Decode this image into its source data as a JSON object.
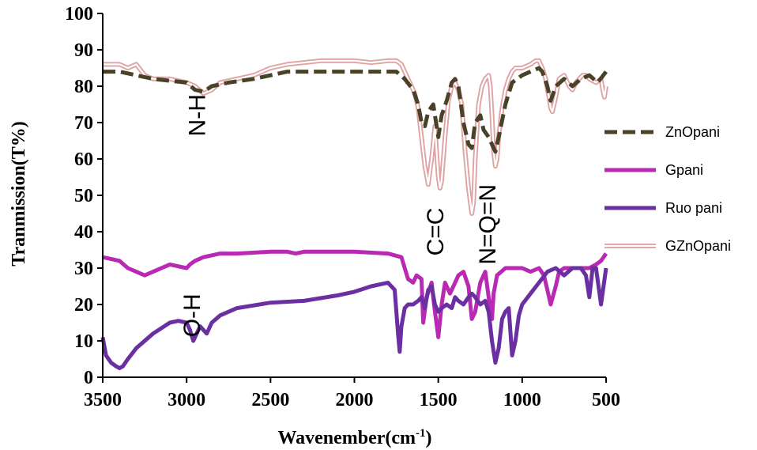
{
  "chart_data": {
    "type": "line",
    "xlabel": "Wavenember(cm",
    "xlabel_sup": "-1",
    "xlabel_close": ")",
    "ylabel": "Tranmission(T%)",
    "xlim": [
      3500,
      500
    ],
    "ylim": [
      0,
      100
    ],
    "x_ticks": [
      3500,
      3000,
      2500,
      2000,
      1500,
      1000,
      500
    ],
    "y_ticks": [
      0,
      10,
      20,
      30,
      40,
      50,
      60,
      70,
      80,
      90,
      100
    ],
    "grid": false,
    "legend_position": "right",
    "annotations": [
      {
        "text": "N-H",
        "x": 2890,
        "y": 72,
        "rotation": -90
      },
      {
        "text": "O-H",
        "x": 2920,
        "y": 17,
        "rotation": -90
      },
      {
        "text": "C=C",
        "x": 1470,
        "y": 40,
        "rotation": -90
      },
      {
        "text": "N=Q=N",
        "x": 1160,
        "y": 42,
        "rotation": -90
      }
    ],
    "series": [
      {
        "name": "ZnOpani",
        "color": "#4a4228",
        "style": "dashed",
        "x": [
          3500,
          3400,
          3200,
          3000,
          2950,
          2900,
          2850,
          2750,
          2600,
          2400,
          2200,
          2000,
          1850,
          1750,
          1700,
          1650,
          1620,
          1600,
          1580,
          1560,
          1530,
          1500,
          1480,
          1450,
          1420,
          1400,
          1380,
          1350,
          1320,
          1300,
          1280,
          1250,
          1230,
          1200,
          1180,
          1160,
          1140,
          1100,
          1060,
          1000,
          950,
          900,
          880,
          850,
          830,
          800,
          750,
          700,
          650,
          600,
          550,
          500
        ],
        "values": [
          84,
          84,
          82,
          81,
          79,
          78.5,
          80,
          81,
          82,
          84,
          84,
          84,
          84,
          84,
          82,
          79,
          75,
          70,
          69,
          73,
          75,
          66,
          72,
          76,
          81,
          82,
          80,
          70,
          64,
          63,
          70,
          72,
          68,
          66,
          64,
          62,
          66,
          75,
          81,
          83,
          84,
          85,
          84,
          80,
          76,
          80,
          82,
          80,
          82,
          83,
          81,
          84
        ]
      },
      {
        "name": "Gpani",
        "color": "#b82ab3",
        "style": "solid",
        "x": [
          3500,
          3400,
          3350,
          3300,
          3250,
          3200,
          3100,
          3000,
          2980,
          2950,
          2900,
          2800,
          2700,
          2500,
          2400,
          2350,
          2300,
          2200,
          2000,
          1800,
          1720,
          1700,
          1680,
          1650,
          1630,
          1600,
          1590,
          1570,
          1540,
          1520,
          1500,
          1480,
          1460,
          1430,
          1400,
          1380,
          1350,
          1320,
          1300,
          1280,
          1250,
          1220,
          1200,
          1180,
          1170,
          1150,
          1100,
          1050,
          1000,
          950,
          900,
          870,
          850,
          830,
          800,
          780,
          750,
          700,
          650,
          600,
          560,
          530,
          500
        ],
        "values": [
          33,
          32,
          30,
          29,
          28,
          29,
          31,
          30,
          31,
          32,
          33,
          34,
          34,
          34.5,
          34.5,
          34,
          34.5,
          34.5,
          34.5,
          34,
          33,
          30,
          27,
          26,
          28,
          27,
          15,
          22,
          26,
          18,
          11,
          20,
          26,
          23,
          26,
          28,
          29,
          25,
          16,
          18,
          26,
          29,
          22,
          16,
          23,
          28,
          30,
          30,
          30,
          29,
          30,
          28,
          24,
          20,
          25,
          29,
          30,
          30,
          30,
          30,
          31,
          32,
          34
        ]
      },
      {
        "name": "Ruo pani",
        "color": "#6a2fa0",
        "style": "solid",
        "x": [
          3500,
          3480,
          3450,
          3420,
          3400,
          3380,
          3350,
          3300,
          3200,
          3100,
          3050,
          3000,
          2980,
          2960,
          2940,
          2920,
          2900,
          2880,
          2850,
          2800,
          2700,
          2500,
          2300,
          2100,
          2000,
          1900,
          1800,
          1760,
          1740,
          1730,
          1720,
          1700,
          1680,
          1650,
          1620,
          1600,
          1580,
          1560,
          1540,
          1520,
          1500,
          1480,
          1450,
          1420,
          1400,
          1380,
          1350,
          1320,
          1300,
          1280,
          1250,
          1220,
          1200,
          1180,
          1160,
          1140,
          1120,
          1100,
          1080,
          1060,
          1040,
          1020,
          1000,
          950,
          900,
          850,
          800,
          750,
          700,
          650,
          620,
          600,
          580,
          560,
          530,
          500
        ],
        "values": [
          11,
          6,
          4,
          3,
          2.5,
          3,
          5,
          8,
          12,
          15,
          15.5,
          15,
          13,
          10,
          12,
          14,
          13,
          12,
          15,
          17,
          19,
          20.5,
          21,
          22.5,
          23.5,
          25,
          26,
          24,
          12,
          7,
          14,
          19,
          20,
          20,
          21,
          22,
          19,
          24,
          25,
          20,
          18,
          19,
          20,
          19,
          22,
          21,
          20,
          22,
          23,
          22,
          20,
          21,
          18,
          10,
          4,
          8,
          16,
          18,
          19,
          6,
          10,
          17,
          20,
          23,
          26,
          29,
          30,
          28,
          30,
          30,
          28,
          22,
          30,
          30,
          20,
          30
        ]
      },
      {
        "name": "GZnOpani",
        "color": "#dfa3a3",
        "style": "double",
        "x": [
          3500,
          3450,
          3400,
          3350,
          3300,
          3250,
          3200,
          3100,
          3000,
          2950,
          2900,
          2850,
          2800,
          2700,
          2600,
          2500,
          2400,
          2300,
          2200,
          2100,
          2000,
          1900,
          1800,
          1750,
          1720,
          1700,
          1680,
          1660,
          1640,
          1620,
          1600,
          1580,
          1560,
          1540,
          1520,
          1500,
          1490,
          1480,
          1460,
          1440,
          1420,
          1400,
          1380,
          1360,
          1340,
          1320,
          1300,
          1290,
          1280,
          1260,
          1240,
          1220,
          1200,
          1190,
          1180,
          1170,
          1160,
          1150,
          1140,
          1120,
          1100,
          1080,
          1060,
          1040,
          1000,
          950,
          920,
          900,
          880,
          860,
          850,
          840,
          830,
          820,
          800,
          780,
          750,
          720,
          700,
          680,
          660,
          640,
          620,
          600,
          560,
          530,
          520,
          510,
          500
        ],
        "values": [
          86,
          86,
          86,
          85,
          86,
          83,
          82,
          82,
          81,
          80,
          78,
          79,
          81,
          82,
          83,
          85,
          86,
          86.5,
          87,
          87,
          87,
          86.5,
          87,
          87,
          86,
          84,
          82,
          80,
          78,
          74,
          66,
          58,
          53,
          60,
          69,
          55,
          52,
          54,
          66,
          76,
          80,
          81,
          79,
          75,
          62,
          52,
          45,
          48,
          60,
          75,
          80,
          82,
          83,
          80,
          72,
          62,
          58,
          60,
          66,
          74,
          79,
          82,
          84,
          85,
          85,
          86,
          87,
          87,
          85,
          82,
          79,
          77,
          74,
          73,
          77,
          82,
          83,
          80,
          79,
          81,
          82,
          83,
          83,
          82,
          81,
          82,
          79,
          77,
          80
        ]
      }
    ]
  }
}
